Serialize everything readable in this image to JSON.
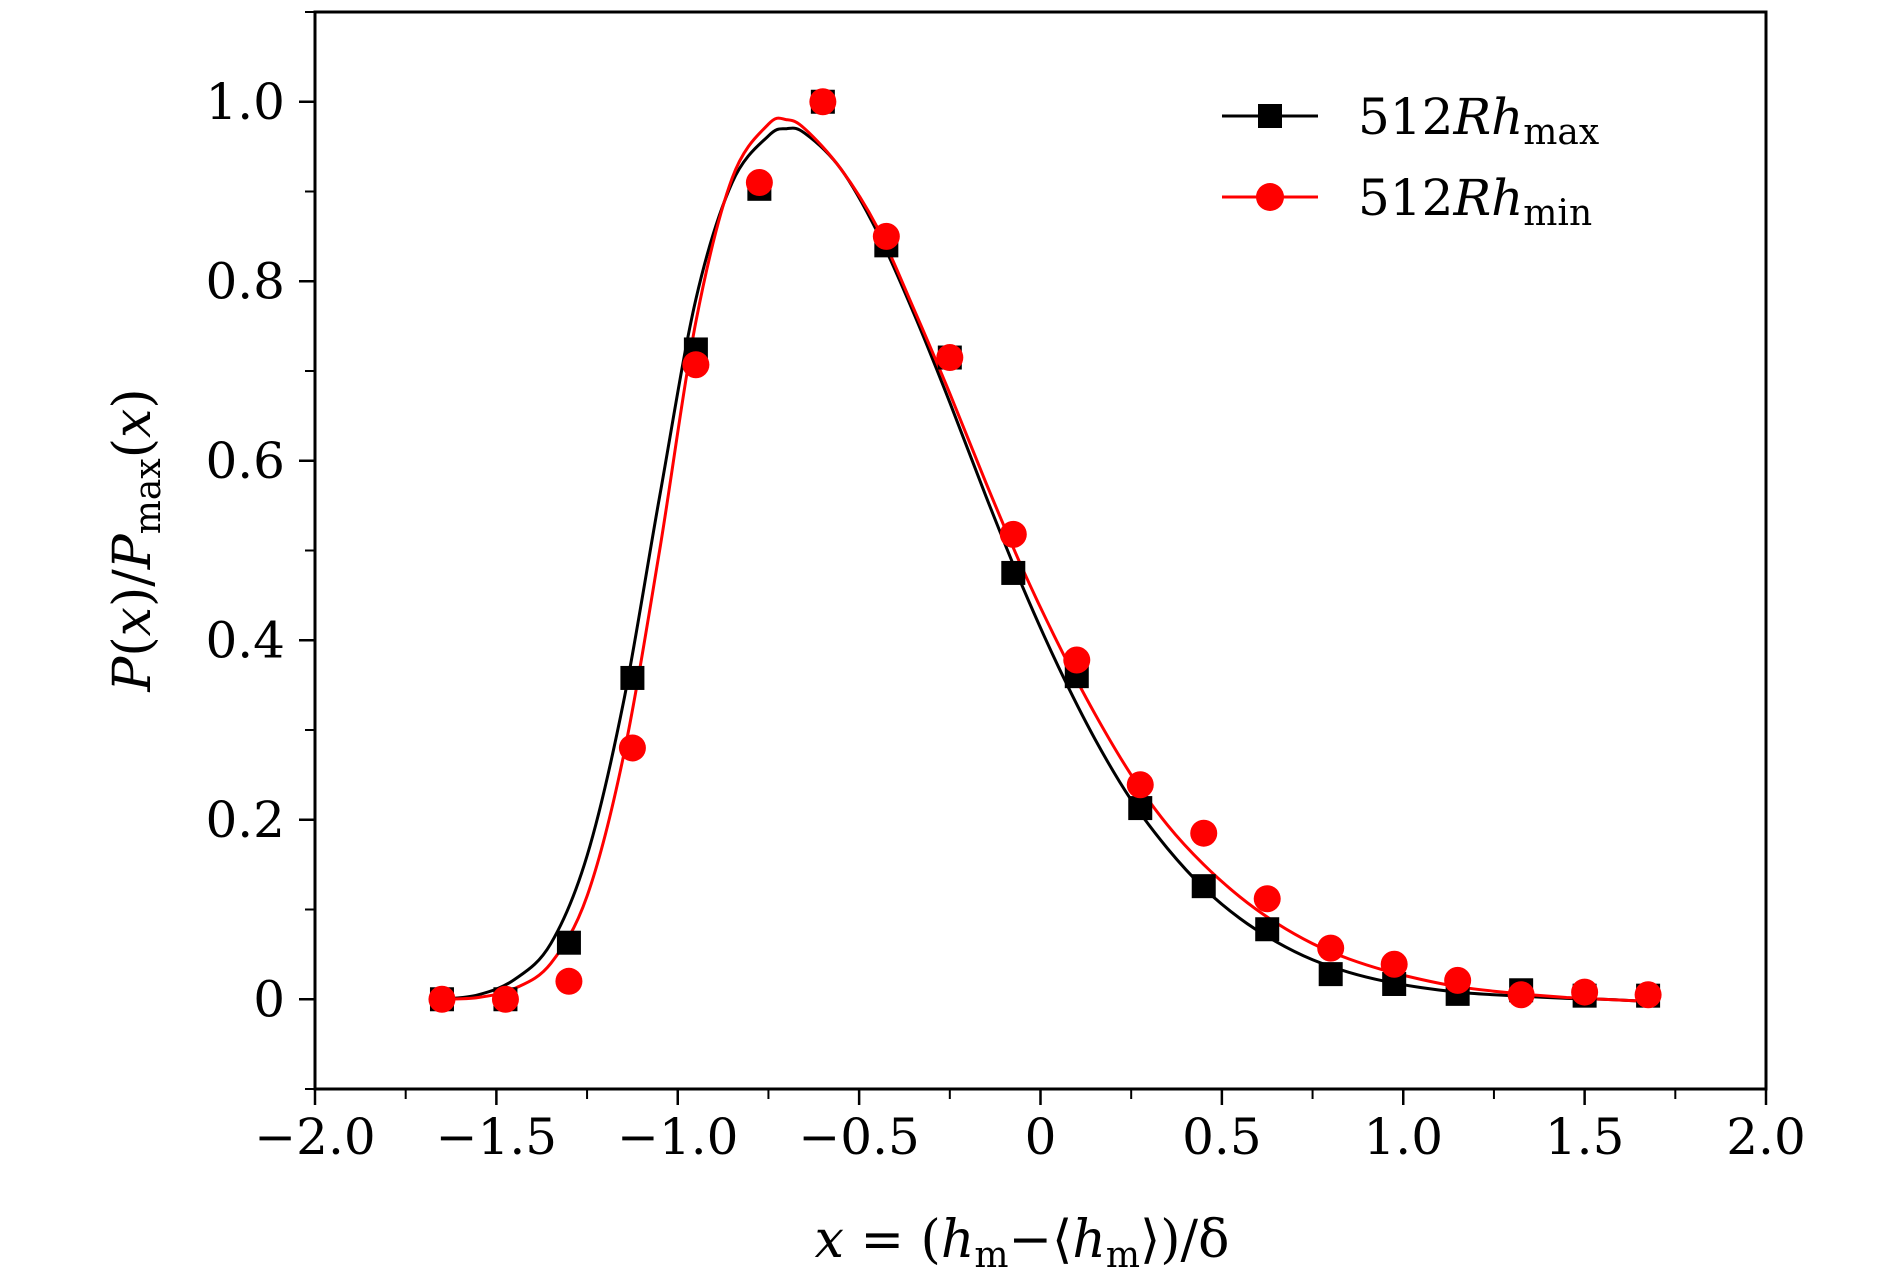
{
  "chart_data": {
    "type": "scatter",
    "title": "",
    "xlabel": "x = (h_m − ⟨h_m⟩)/δ",
    "xlabel_parts": {
      "var": "x",
      "eq": " = (",
      "h1": "h",
      "sub1": "m",
      "minus": "−⟨",
      "h2": "h",
      "sub2": "m",
      "tail": "⟩)/δ"
    },
    "ylabel": "P(x)/P_max(x)",
    "ylabel_parts": {
      "p1": "P",
      "a1": "(",
      "x1": "x",
      "a2": ")/",
      "p2": "P",
      "sub": "max",
      "a3": "(",
      "x2": "x",
      "a4": ")"
    },
    "xlim": [
      -2.0,
      2.0
    ],
    "ylim": [
      -0.1,
      1.1
    ],
    "xticks": [
      {
        "value": -2.0,
        "label": "−2.0"
      },
      {
        "value": -1.5,
        "label": "−1.5"
      },
      {
        "value": -1.0,
        "label": "−1.0"
      },
      {
        "value": -0.5,
        "label": "−0.5"
      },
      {
        "value": 0.0,
        "label": "0"
      },
      {
        "value": 0.5,
        "label": "0.5"
      },
      {
        "value": 1.0,
        "label": "1.0"
      },
      {
        "value": 1.5,
        "label": "1.5"
      },
      {
        "value": 2.0,
        "label": "2.0"
      }
    ],
    "yticks": [
      {
        "value": 0.0,
        "label": "0"
      },
      {
        "value": 0.2,
        "label": "0.2"
      },
      {
        "value": 0.4,
        "label": "0.4"
      },
      {
        "value": 0.6,
        "label": "0.6"
      },
      {
        "value": 0.8,
        "label": "0.8"
      },
      {
        "value": 1.0,
        "label": "1.0"
      }
    ],
    "grid": false,
    "legend_position": "top-right",
    "series": [
      {
        "name": "512Rh_max",
        "label_prefix": "512",
        "label_italic": "Rh",
        "label_sub": "max",
        "color": "#000000",
        "marker": "square",
        "x": [
          -1.65,
          -1.475,
          -1.3,
          -1.125,
          -0.95,
          -0.775,
          -0.6,
          -0.425,
          -0.25,
          -0.075,
          0.1,
          0.275,
          0.45,
          0.625,
          0.8,
          0.975,
          1.15,
          1.325,
          1.5,
          1.675
        ],
        "y": [
          0.0,
          0.0,
          0.063,
          0.358,
          0.724,
          0.903,
          1.0,
          0.84,
          0.715,
          0.475,
          0.36,
          0.213,
          0.126,
          0.078,
          0.028,
          0.017,
          0.006,
          0.01,
          0.004,
          0.004
        ],
        "fit_x": [
          -1.65,
          -1.55,
          -1.45,
          -1.35,
          -1.25,
          -1.15,
          -1.05,
          -0.95,
          -0.85,
          -0.75,
          -0.7,
          -0.65,
          -0.55,
          -0.45,
          -0.35,
          -0.25,
          -0.15,
          -0.05,
          0.05,
          0.15,
          0.25,
          0.35,
          0.45,
          0.55,
          0.65,
          0.75,
          0.85,
          0.95,
          1.05,
          1.15,
          1.25,
          1.35,
          1.45,
          1.55,
          1.65
        ],
        "fit_y": [
          0.0,
          0.005,
          0.022,
          0.062,
          0.16,
          0.33,
          0.56,
          0.78,
          0.91,
          0.962,
          0.97,
          0.965,
          0.925,
          0.855,
          0.765,
          0.665,
          0.56,
          0.46,
          0.37,
          0.29,
          0.222,
          0.168,
          0.124,
          0.09,
          0.064,
          0.044,
          0.03,
          0.02,
          0.013,
          0.008,
          0.005,
          0.003,
          0.001,
          0.0,
          -0.002
        ]
      },
      {
        "name": "512Rh_min",
        "label_prefix": "512",
        "label_italic": "Rh",
        "label_sub": "min",
        "color": "#ff0000",
        "marker": "circle",
        "x": [
          -1.65,
          -1.475,
          -1.3,
          -1.125,
          -0.95,
          -0.775,
          -0.6,
          -0.425,
          -0.25,
          -0.075,
          0.1,
          0.275,
          0.45,
          0.625,
          0.8,
          0.975,
          1.15,
          1.325,
          1.5,
          1.675
        ],
        "y": [
          0.0,
          0.0,
          0.02,
          0.28,
          0.707,
          0.91,
          1.0,
          0.85,
          0.715,
          0.518,
          0.378,
          0.239,
          0.185,
          0.112,
          0.057,
          0.039,
          0.021,
          0.005,
          0.008,
          0.005
        ],
        "fit_x": [
          -1.65,
          -1.55,
          -1.45,
          -1.35,
          -1.25,
          -1.15,
          -1.05,
          -0.95,
          -0.85,
          -0.75,
          -0.7,
          -0.65,
          -0.55,
          -0.45,
          -0.35,
          -0.25,
          -0.15,
          -0.05,
          0.05,
          0.15,
          0.25,
          0.35,
          0.45,
          0.55,
          0.65,
          0.75,
          0.85,
          0.95,
          1.05,
          1.15,
          1.25,
          1.35,
          1.45,
          1.55,
          1.65
        ],
        "fit_y": [
          0.0,
          0.002,
          0.012,
          0.04,
          0.115,
          0.27,
          0.5,
          0.755,
          0.915,
          0.975,
          0.98,
          0.97,
          0.925,
          0.86,
          0.77,
          0.675,
          0.575,
          0.48,
          0.395,
          0.318,
          0.25,
          0.194,
          0.15,
          0.114,
          0.085,
          0.062,
          0.045,
          0.032,
          0.022,
          0.014,
          0.009,
          0.005,
          0.002,
          0.0,
          -0.002
        ]
      }
    ]
  }
}
